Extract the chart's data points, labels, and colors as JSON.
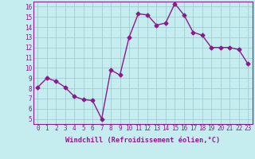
{
  "x": [
    0,
    1,
    2,
    3,
    4,
    5,
    6,
    7,
    8,
    9,
    10,
    11,
    12,
    13,
    14,
    15,
    16,
    17,
    18,
    19,
    20,
    21,
    22,
    23
  ],
  "y": [
    8.1,
    9.0,
    8.7,
    8.1,
    7.2,
    6.9,
    6.8,
    5.0,
    9.8,
    9.3,
    13.0,
    15.3,
    15.2,
    14.2,
    14.4,
    16.3,
    15.2,
    13.5,
    13.2,
    12.0,
    12.0,
    12.0,
    11.8,
    10.4
  ],
  "line_color": "#8b1a8b",
  "marker": "D",
  "markersize": 2.5,
  "bg_color": "#c5edf0",
  "grid_color": "#a0cdd0",
  "xlabel": "Windchill (Refroidissement éolien,°C)",
  "xlabel_color": "#8b1a8b",
  "tick_color": "#8b1a8b",
  "ylim_min": 4.5,
  "ylim_max": 16.5,
  "yticks": [
    5,
    6,
    7,
    8,
    9,
    10,
    11,
    12,
    13,
    14,
    15,
    16
  ],
  "xticks": [
    0,
    1,
    2,
    3,
    4,
    5,
    6,
    7,
    8,
    9,
    10,
    11,
    12,
    13,
    14,
    15,
    16,
    17,
    18,
    19,
    20,
    21,
    22,
    23
  ],
  "linewidth": 1.0,
  "tick_fontsize": 5.5,
  "xlabel_fontsize": 6.2
}
